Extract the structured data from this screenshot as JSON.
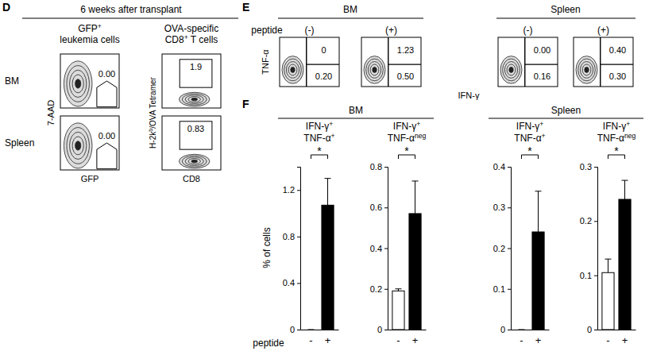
{
  "chart_data": [
    {
      "type": "bar",
      "title": [
        [
          {
            "text": "IFN-γ",
            "sup": "+"
          }
        ],
        [
          {
            "text": "TNF-α",
            "sup": "+"
          }
        ]
      ],
      "categories": [
        "-",
        "+"
      ],
      "values": [
        0,
        1.07
      ],
      "errors": [
        0,
        0.23
      ],
      "colors": [
        "#ffffff",
        "#000000"
      ],
      "ylim": [
        0,
        1.4
      ],
      "yticks": [
        0,
        0.4,
        0.8,
        1.2
      ],
      "significance": "*"
    },
    {
      "type": "bar",
      "title": [
        [
          {
            "text": "IFN-γ",
            "sup": "+"
          }
        ],
        [
          {
            "text": "TNF-α",
            "sup": "neg"
          }
        ]
      ],
      "categories": [
        "-",
        "+"
      ],
      "values": [
        0.19,
        0.57
      ],
      "errors": [
        0.01,
        0.16
      ],
      "colors": [
        "#ffffff",
        "#000000"
      ],
      "ylim": [
        0,
        0.8
      ],
      "yticks": [
        0,
        0.2,
        0.4,
        0.6,
        0.8
      ],
      "significance": "*"
    },
    {
      "type": "bar",
      "title": [
        [
          {
            "text": "IFN-γ",
            "sup": "+"
          }
        ],
        [
          {
            "text": "TNF-α",
            "sup": "+"
          }
        ]
      ],
      "categories": [
        "-",
        "+"
      ],
      "values": [
        0,
        0.24
      ],
      "errors": [
        0,
        0.1
      ],
      "colors": [
        "#ffffff",
        "#000000"
      ],
      "ylim": [
        0,
        0.4
      ],
      "yticks": [
        0,
        0.1,
        0.2,
        0.3,
        0.4
      ],
      "significance": "*"
    },
    {
      "type": "bar",
      "title": [
        [
          {
            "text": "IFN-γ",
            "sup": "+"
          }
        ],
        [
          {
            "text": "TNF-α",
            "sup": "neg"
          }
        ]
      ],
      "categories": [
        "-",
        "+"
      ],
      "values": [
        0.105,
        0.24
      ],
      "errors": [
        0.025,
        0.035
      ],
      "colors": [
        "#ffffff",
        "#000000"
      ],
      "ylim": [
        0,
        0.3
      ],
      "yticks": [
        0,
        0.1,
        0.2,
        0.3
      ],
      "significance": "*"
    }
  ],
  "panel_d": {
    "label": "D",
    "title": "6 weeks after transplant",
    "rows": [
      "BM",
      "Spleen"
    ],
    "columns": [
      {
        "title": [
          [
            {
              "text": "GFP",
              "sup": "+"
            }
          ],
          [
            {
              "text": "leukemia cells"
            }
          ]
        ],
        "x_label": [
          {
            "text": "GFP"
          }
        ],
        "y_label": [
          {
            "text": "7-AAD"
          }
        ],
        "values": [
          0,
          0
        ],
        "value_labels": [
          "0.00",
          "0.00"
        ]
      },
      {
        "title": [
          [
            {
              "text": "OVA-specific"
            }
          ],
          [
            {
              "text": "CD8",
              "sup": "+"
            },
            {
              "text": " T cells"
            }
          ]
        ],
        "x_label": [
          {
            "text": "CD8"
          }
        ],
        "y_label": [
          {
            "text": "H-2k",
            "sup": "b"
          },
          {
            "text": "/OVA Tetramer"
          }
        ],
        "values": [
          1.9,
          0.83
        ],
        "value_labels": [
          "1.9",
          "0.83"
        ]
      }
    ]
  },
  "panel_e": {
    "label": "E",
    "condition_label": "peptide",
    "y_label": "TNF-α",
    "x_label": "IFN-γ",
    "groups": [
      {
        "title": "BM",
        "plots": [
          {
            "condition": "(-)",
            "values": [
              0,
              0.2
            ],
            "value_labels": [
              "0",
              "0.20"
            ]
          },
          {
            "condition": "(+)",
            "values": [
              1.23,
              0.5
            ],
            "value_labels": [
              "1.23",
              "0.50"
            ]
          }
        ]
      },
      {
        "title": "Spleen",
        "plots": [
          {
            "condition": "(-)",
            "values": [
              0,
              0.16
            ],
            "value_labels": [
              "0.00",
              "0.16"
            ]
          },
          {
            "condition": "(+)",
            "values": [
              0.4,
              0.3
            ],
            "value_labels": [
              "0.40",
              "0.30"
            ]
          }
        ]
      }
    ]
  },
  "panel_f": {
    "label": "F",
    "groups": [
      "BM",
      "Spleen"
    ],
    "y_label": "% of cells",
    "x_label": "peptide"
  }
}
